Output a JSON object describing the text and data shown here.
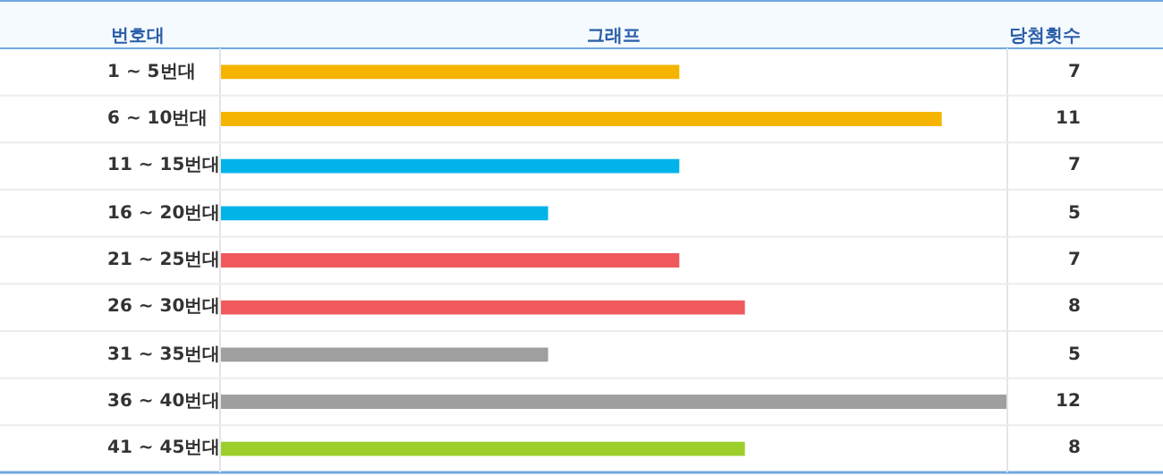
{
  "chart_data": {
    "type": "bar",
    "orientation": "horizontal",
    "ylabel": "번호대",
    "xlabel": "그래프",
    "annotations": [
      "당첨횟수"
    ],
    "categories": [
      "1 ~ 5번대",
      "6 ~ 10번대",
      "11 ~ 15번대",
      "16 ~ 20번대",
      "21 ~ 25번대",
      "26 ~ 30번대",
      "31 ~ 35번대",
      "36 ~ 40번대",
      "41 ~ 45번대"
    ],
    "values": [
      7,
      11,
      7,
      5,
      7,
      8,
      5,
      12,
      8
    ],
    "colors": [
      "#f5b400",
      "#f5b400",
      "#00b4ea",
      "#00b4ea",
      "#f05a5d",
      "#f05a5d",
      "#9f9f9f",
      "#9f9f9f",
      "#9ccf2c"
    ],
    "data_labels": true
  }
}
